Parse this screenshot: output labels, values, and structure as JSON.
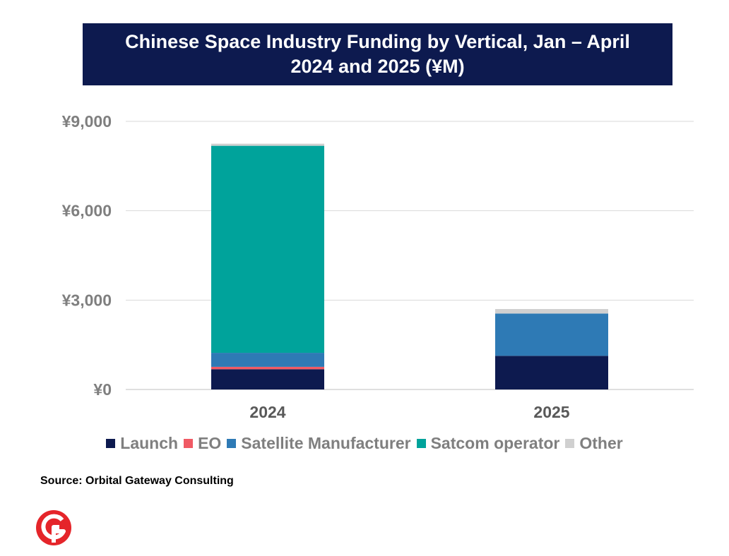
{
  "chart_data": {
    "type": "bar",
    "stacked": true,
    "title": "Chinese Space Industry Funding by Vertical, Jan – April 2024 and 2025 (¥M)",
    "categories": [
      "2024",
      "2025"
    ],
    "series": [
      {
        "name": "Launch",
        "color": "#0d1a4f",
        "values": [
          680,
          1130
        ]
      },
      {
        "name": "EO",
        "color": "#f05a64",
        "values": [
          80,
          0
        ]
      },
      {
        "name": "Satellite Manufacturer",
        "color": "#2e7ab5",
        "values": [
          470,
          1420
        ]
      },
      {
        "name": "Satcom operator",
        "color": "#00a39b",
        "values": [
          6950,
          0
        ]
      },
      {
        "name": "Other",
        "color": "#d0d0d0",
        "values": [
          70,
          150
        ]
      }
    ],
    "ylim": [
      0,
      9000
    ],
    "yticks": [
      0,
      3000,
      6000,
      9000
    ],
    "ytick_labels": [
      "¥0",
      "¥3,000",
      "¥6,000",
      "¥9,000"
    ],
    "grid": true,
    "legend_position": "bottom"
  },
  "source": "Source: Orbital Gateway Consulting",
  "logo_icon": "orbital-gateway-logo"
}
